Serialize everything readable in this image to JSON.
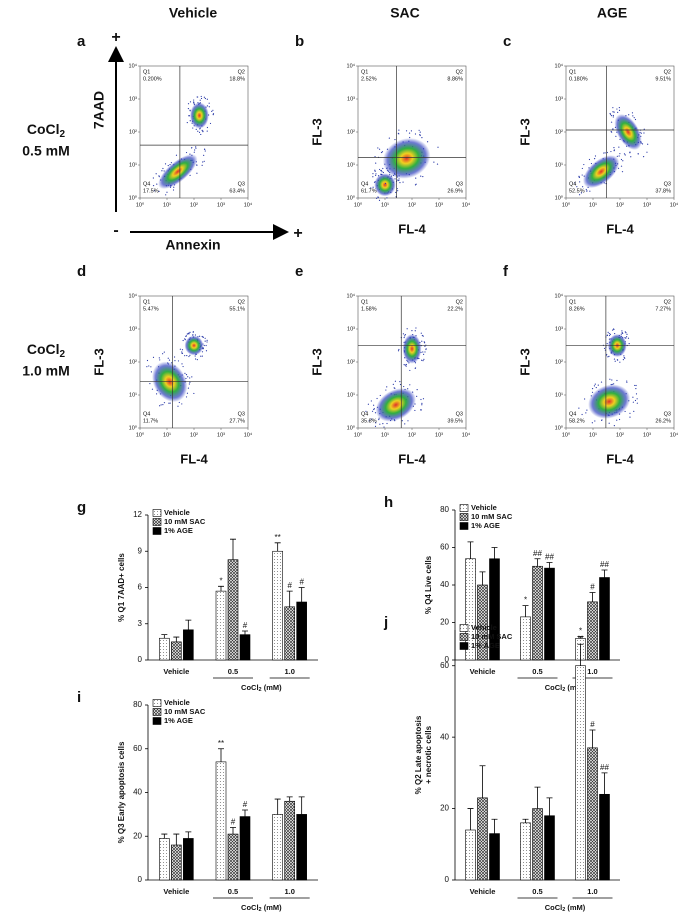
{
  "column_headers": [
    "Vehicle",
    "SAC",
    "AGE"
  ],
  "row_labels": [
    {
      "prefix": "CoCl",
      "sub": "2",
      "dose": "0.5 mM"
    },
    {
      "prefix": "CoCl",
      "sub": "2",
      "dose": "1.0 mM"
    }
  ],
  "axis_signs": {
    "top": "+",
    "left": "-",
    "right": "+"
  },
  "flow_ticks": [
    {
      "value": 1,
      "label": "10⁰"
    },
    {
      "value": 10,
      "label": "10¹"
    },
    {
      "value": 100,
      "label": "10²"
    },
    {
      "value": 1000,
      "label": "10³"
    },
    {
      "value": 10000,
      "label": "10⁴"
    }
  ],
  "flow_plots": [
    {
      "letter": "a",
      "ylabel": "7AAD",
      "xlabel": "Annexin",
      "gate": [
        30,
        40
      ],
      "quadrants": [
        {
          "name": "Q1",
          "label": "0.200%"
        },
        {
          "name": "Q2",
          "label": "18.8%"
        },
        {
          "name": "Q4",
          "label": "17.5%"
        },
        {
          "name": "Q3",
          "label": "63.4%"
        }
      ]
    },
    {
      "letter": "b",
      "ylabel": "FL-3",
      "xlabel": "FL-4",
      "gate": [
        27,
        17
      ],
      "quadrants": [
        {
          "name": "Q1",
          "label": "2.52%"
        },
        {
          "name": "Q2",
          "label": "8.86%"
        },
        {
          "name": "Q4",
          "label": "61.7%"
        },
        {
          "name": "Q3",
          "label": "26.9%"
        }
      ]
    },
    {
      "letter": "c",
      "ylabel": "FL-3",
      "xlabel": "FL-4",
      "gate": [
        32,
        115
      ],
      "quadrants": [
        {
          "name": "Q1",
          "label": "0.180%"
        },
        {
          "name": "Q2",
          "label": "9.51%"
        },
        {
          "name": "Q4",
          "label": "52.5%"
        },
        {
          "name": "Q3",
          "label": "37.8%"
        }
      ]
    },
    {
      "letter": "d",
      "ylabel": "FL-3",
      "xlabel": "FL-4",
      "gate": [
        16,
        26
      ],
      "quadrants": [
        {
          "name": "Q1",
          "label": "5.47%"
        },
        {
          "name": "Q2",
          "label": "55.1%"
        },
        {
          "name": "Q4",
          "label": "11.7%"
        },
        {
          "name": "Q3",
          "label": "27.7%"
        }
      ]
    },
    {
      "letter": "e",
      "ylabel": "FL-3",
      "xlabel": "FL-4",
      "gate": [
        40,
        320
      ],
      "quadrants": [
        {
          "name": "Q1",
          "label": "1.58%"
        },
        {
          "name": "Q2",
          "label": "22.2%"
        },
        {
          "name": "Q4",
          "label": "35.8%"
        },
        {
          "name": "Q3",
          "label": "39.5%"
        }
      ]
    },
    {
      "letter": "f",
      "ylabel": "FL-3",
      "xlabel": "FL-4",
      "gate": [
        30,
        320
      ],
      "quadrants": [
        {
          "name": "Q1",
          "label": "8.26%"
        },
        {
          "name": "Q2",
          "label": "7.27%"
        },
        {
          "name": "Q4",
          "label": "58.2%"
        },
        {
          "name": "Q3",
          "label": "26.2%"
        }
      ]
    }
  ],
  "chart_data": [
    {
      "type": "bar",
      "letter": "g",
      "ylabel": [
        "% Q1 7AAD+ cells"
      ],
      "categories": [
        "Vehicle",
        "0.5",
        "1.0"
      ],
      "xlabel": {
        "prefix": "CoCl",
        "sub": "2",
        "suffix": " (mM)"
      },
      "ylim": [
        0,
        12
      ],
      "yticks": [
        0,
        3,
        6,
        9,
        12
      ],
      "legend": "top-left",
      "series": [
        {
          "name": "Vehicle",
          "color": "#ffffff",
          "pattern": "dots",
          "values": [
            1.8,
            5.7,
            9.0
          ],
          "errors": [
            0.3,
            0.4,
            0.7
          ],
          "sig": [
            null,
            "*",
            "**"
          ]
        },
        {
          "name": "10 mM SAC",
          "color": "#888888",
          "pattern": "cross",
          "values": [
            1.5,
            8.3,
            4.4
          ],
          "errors": [
            0.4,
            1.7,
            1.3
          ],
          "sig": [
            null,
            null,
            "#"
          ]
        },
        {
          "name": "1% AGE",
          "color": "#000000",
          "pattern": "solid",
          "values": [
            2.5,
            2.1,
            4.8
          ],
          "errors": [
            0.8,
            0.3,
            1.2
          ],
          "sig": [
            null,
            "#",
            "#"
          ]
        }
      ]
    },
    {
      "type": "bar",
      "letter": "h",
      "ylabel": [
        "% Q4 Live cells"
      ],
      "categories": [
        "Vehicle",
        "0.5",
        "1.0"
      ],
      "xlabel": {
        "prefix": "CoCl",
        "sub": "2",
        "suffix": " (mM)"
      },
      "ylim": [
        0,
        80
      ],
      "yticks": [
        0,
        20,
        40,
        60,
        80
      ],
      "legend": "top-left",
      "series": [
        {
          "name": "Vehicle",
          "color": "#ffffff",
          "pattern": "dots",
          "values": [
            54,
            23,
            11.5
          ],
          "errors": [
            9,
            6,
            1
          ],
          "sig": [
            null,
            "*",
            "*"
          ]
        },
        {
          "name": "10 mM SAC",
          "color": "#888888",
          "pattern": "cross",
          "values": [
            40,
            50,
            31
          ],
          "errors": [
            7,
            4,
            5
          ],
          "sig": [
            null,
            "##",
            "#"
          ]
        },
        {
          "name": "1% AGE",
          "color": "#000000",
          "pattern": "solid",
          "values": [
            54,
            49,
            44
          ],
          "errors": [
            6,
            3,
            4
          ],
          "sig": [
            null,
            "##",
            "##"
          ]
        }
      ]
    },
    {
      "type": "bar",
      "letter": "i",
      "ylabel": [
        "% Q3 Early apoptosis cells"
      ],
      "categories": [
        "Vehicle",
        "0.5",
        "1.0"
      ],
      "xlabel": {
        "prefix": "CoCl",
        "sub": "2",
        "suffix": " (mM)"
      },
      "ylim": [
        0,
        80
      ],
      "yticks": [
        0,
        20,
        40,
        60,
        80
      ],
      "legend": "top-left",
      "series": [
        {
          "name": "Vehicle",
          "color": "#ffffff",
          "pattern": "dots",
          "values": [
            19,
            54,
            30
          ],
          "errors": [
            2,
            6,
            7
          ],
          "sig": [
            null,
            "**",
            null
          ]
        },
        {
          "name": "10 mM SAC",
          "color": "#888888",
          "pattern": "cross",
          "values": [
            16,
            21,
            36
          ],
          "errors": [
            5,
            3,
            2
          ],
          "sig": [
            null,
            "#",
            null
          ]
        },
        {
          "name": "1% AGE",
          "color": "#000000",
          "pattern": "solid",
          "values": [
            19,
            29,
            30
          ],
          "errors": [
            3,
            3,
            8
          ],
          "sig": [
            null,
            "#",
            null
          ]
        }
      ]
    },
    {
      "type": "bar",
      "letter": "j",
      "ylabel": [
        "% Q2 Late apoptosis",
        "+ necrotic cells"
      ],
      "categories": [
        "Vehicle",
        "0.5",
        "1.0"
      ],
      "xlabel": {
        "prefix": "CoCl",
        "sub": "2",
        "suffix": " (mM)"
      },
      "ylim": [
        0,
        70
      ],
      "yticks": [
        0,
        20,
        40,
        60
      ],
      "legend": "top-left",
      "series": [
        {
          "name": "Vehicle",
          "color": "#ffffff",
          "pattern": "dots",
          "values": [
            14,
            16,
            60
          ],
          "errors": [
            6,
            1,
            6
          ],
          "sig": [
            null,
            null,
            "**"
          ]
        },
        {
          "name": "10 mM SAC",
          "color": "#888888",
          "pattern": "cross",
          "values": [
            23,
            20,
            37
          ],
          "errors": [
            9,
            6,
            5
          ],
          "sig": [
            null,
            null,
            "#"
          ]
        },
        {
          "name": "1% AGE",
          "color": "#000000",
          "pattern": "solid",
          "values": [
            13,
            18,
            24
          ],
          "errors": [
            4,
            5,
            6
          ],
          "sig": [
            null,
            null,
            "##"
          ]
        }
      ]
    }
  ]
}
